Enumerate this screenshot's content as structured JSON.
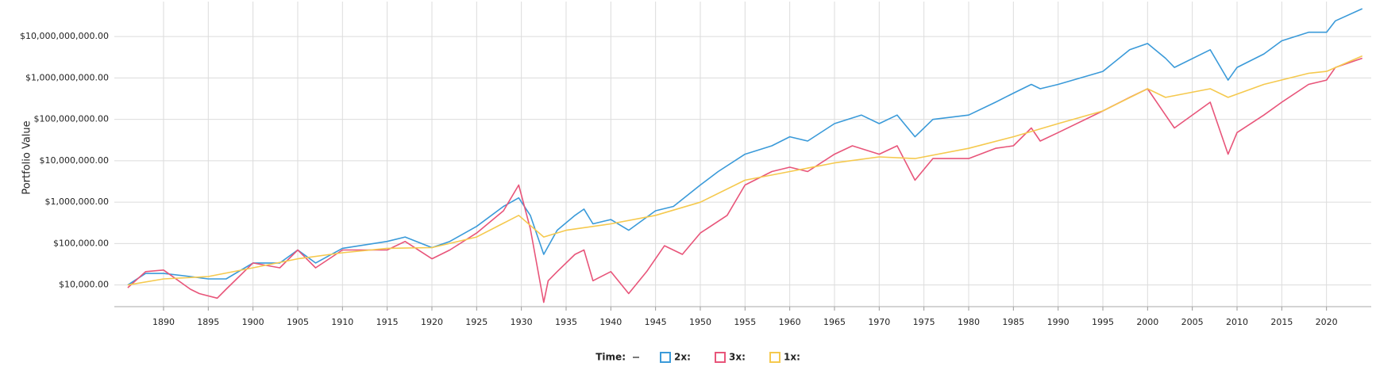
{
  "chart_data": {
    "type": "line",
    "y_label": "Portfolio Value",
    "x_legend_label": "Time:",
    "log_scale_y": true,
    "grid": true,
    "xlim": [
      1884.5,
      2025
    ],
    "xticks": [
      1890,
      1895,
      1900,
      1905,
      1910,
      1915,
      1920,
      1925,
      1930,
      1935,
      1940,
      1945,
      1950,
      1955,
      1960,
      1965,
      1970,
      1975,
      1980,
      1985,
      1990,
      1995,
      2000,
      2005,
      2010,
      2015,
      2020
    ],
    "ylim": [
      3000,
      70000000000
    ],
    "yticks": [
      {
        "value": 10000,
        "label": "$10,000.00"
      },
      {
        "value": 100000,
        "label": "$100,000.00"
      },
      {
        "value": 1000000,
        "label": "$1,000,000.00"
      },
      {
        "value": 10000000,
        "label": "$10,000,000.00"
      },
      {
        "value": 100000000,
        "label": "$100,000,000.00"
      },
      {
        "value": 1000000000,
        "label": "$1,000,000,000.00"
      },
      {
        "value": 10000000000,
        "label": "$10,000,000,000.00"
      }
    ],
    "series": [
      {
        "name": "2x:",
        "color": "#3a9ad9",
        "x": [
          1886,
          1888,
          1890,
          1893,
          1895,
          1897,
          1900,
          1903,
          1905,
          1907,
          1910,
          1915,
          1917,
          1920,
          1922,
          1925,
          1928,
          1929.7,
          1931,
          1932.5,
          1934,
          1936,
          1937,
          1938,
          1940,
          1942,
          1945,
          1947,
          1950,
          1952,
          1955,
          1958,
          1960,
          1962,
          1965,
          1968,
          1970,
          1972,
          1974,
          1976,
          1980,
          1983,
          1985,
          1987,
          1988,
          1990,
          1995,
          1998,
          2000,
          2002,
          2003,
          2007,
          2009,
          2010,
          2013,
          2015,
          2018,
          2020,
          2021,
          2024
        ],
        "values": [
          10000,
          19000,
          19000,
          16000,
          14000,
          14000,
          34000,
          34000,
          70000,
          34000,
          77000,
          113000,
          144000,
          80000,
          113000,
          260000,
          790000,
          1270000,
          480000,
          55000,
          210000,
          480000,
          680000,
          300000,
          380000,
          210000,
          620000,
          790000,
          2600000,
          5500000,
          14400000,
          23000000,
          38000000,
          30000000,
          79000000,
          127000000,
          79000000,
          127000000,
          38000000,
          100000000,
          127000000,
          260000000,
          430000000,
          700000000,
          550000000,
          700000000,
          1440000000,
          4800000000,
          6800000000,
          3000000000,
          1800000000,
          4800000000,
          890000000,
          1800000000,
          3800000000,
          7900000000,
          12700000000,
          12700000000,
          24000000000,
          47000000000
        ]
      },
      {
        "name": "3x:",
        "color": "#e8557a",
        "x": [
          1886,
          1888,
          1890,
          1893,
          1894,
          1896,
          1897,
          1900,
          1903,
          1905,
          1907,
          1910,
          1915,
          1917,
          1920,
          1922,
          1925,
          1928,
          1929.7,
          1931,
          1932.5,
          1933,
          1934,
          1936,
          1937,
          1938,
          1940,
          1942,
          1944,
          1946,
          1948,
          1950,
          1953,
          1955,
          1958,
          1960,
          1962,
          1965,
          1967,
          1970,
          1972,
          1974,
          1976,
          1980,
          1983,
          1985,
          1987,
          1988,
          1990,
          1995,
          1998,
          2000,
          2002,
          2003,
          2007,
          2009,
          2010,
          2013,
          2015,
          2018,
          2020,
          2021,
          2024
        ],
        "values": [
          8600,
          21000,
          23000,
          7900,
          6200,
          4800,
          7900,
          34000,
          26000,
          70000,
          26000,
          70000,
          70000,
          113000,
          43000,
          70000,
          180000,
          620000,
          2600000,
          230000,
          3800,
          12700,
          21000,
          55000,
          70000,
          12700,
          21000,
          6200,
          21000,
          89000,
          55000,
          180000,
          480000,
          2600000,
          5500000,
          7000000,
          5500000,
          14400000,
          23000000,
          14400000,
          23000000,
          3400000,
          11300000,
          11300000,
          20000000,
          23000000,
          62000000,
          30000000,
          48000000,
          160000000,
          340000000,
          550000000,
          127000000,
          62000000,
          260000000,
          14400000,
          48000000,
          127000000,
          260000000,
          700000000,
          890000000,
          1800000000,
          3000000000
        ]
      },
      {
        "name": "1x:",
        "color": "#f5c94e",
        "x": [
          1886,
          1890,
          1895,
          1900,
          1905,
          1910,
          1915,
          1920,
          1925,
          1929.7,
          1932.5,
          1935,
          1940,
          1945,
          1950,
          1955,
          1960,
          1965,
          1970,
          1974,
          1980,
          1985,
          1990,
          1995,
          2000,
          2002,
          2007,
          2009,
          2013,
          2018,
          2020,
          2024
        ],
        "values": [
          10000,
          14000,
          16000,
          26000,
          43000,
          60000,
          77000,
          80000,
          144000,
          480000,
          144000,
          210000,
          300000,
          480000,
          1000000,
          3400000,
          5500000,
          8900000,
          12400000,
          11300000,
          20000000,
          38000000,
          79000000,
          160000000,
          550000000,
          340000000,
          550000000,
          340000000,
          700000000,
          1300000000,
          1440000000,
          3400000000
        ]
      }
    ]
  }
}
